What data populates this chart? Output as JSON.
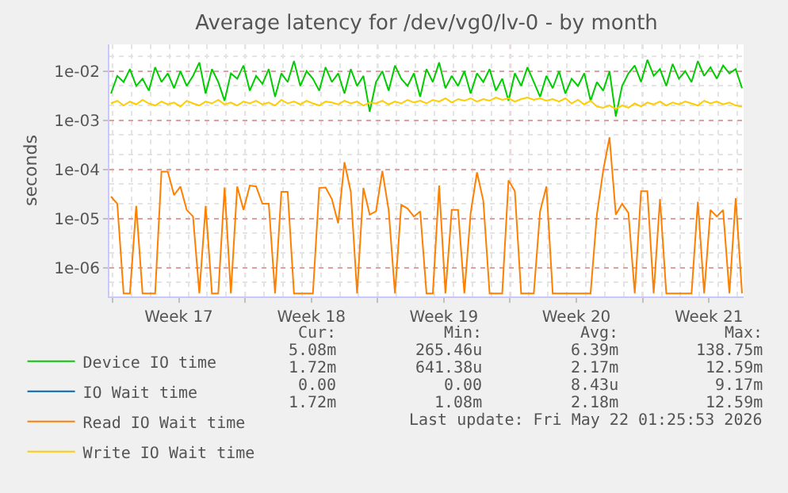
{
  "chart_data": {
    "type": "line",
    "title": "Average latency for /dev/vg0/lv-0 - by month",
    "ylabel": "seconds",
    "log": true,
    "grid": true,
    "legend": "bottom",
    "marker": "none",
    "line_style": "solid",
    "xlim": [
      "2026-04-18T14:00",
      "2026-05-22T02:00"
    ],
    "xticks": [
      {
        "value": "2026-04-18T18:00",
        "label": null
      },
      {
        "value": "2026-04-22T06:00",
        "label": "Week 17"
      },
      {
        "value": "2026-04-25T18:00",
        "label": null
      },
      {
        "value": "2026-04-29T06:00",
        "label": "Week 18"
      },
      {
        "value": "2026-05-02T18:00",
        "label": null
      },
      {
        "value": "2026-05-06T06:00",
        "label": "Week 19"
      },
      {
        "value": "2026-05-09T18:00",
        "label": null
      },
      {
        "value": "2026-05-13T06:00",
        "label": "Week 20"
      },
      {
        "value": "2026-05-16T18:00",
        "label": null
      },
      {
        "value": "2026-05-20T06:00",
        "label": "Week 21"
      }
    ],
    "ylim": [
      2.6e-07,
      0.035
    ],
    "yticks": [
      {
        "value": 1e-06,
        "label": "1e-06"
      },
      {
        "value": 1e-05,
        "label": "1e-05"
      },
      {
        "value": 0.0001,
        "label": "1e-04"
      },
      {
        "value": 0.001,
        "label": "1e-03"
      },
      {
        "value": 0.01,
        "label": "1e-02"
      }
    ],
    "x": [
      "2026-04-18T16:00",
      "2026-04-19T00:00",
      "2026-04-19T08:00",
      "2026-04-19T16:00",
      "2026-04-20T00:00",
      "2026-04-20T08:00",
      "2026-04-20T16:00",
      "2026-04-21T00:00",
      "2026-04-21T08:00",
      "2026-04-21T16:00",
      "2026-04-22T00:00",
      "2026-04-22T08:00",
      "2026-04-22T16:00",
      "2026-04-23T00:00",
      "2026-04-23T08:00",
      "2026-04-23T16:00",
      "2026-04-24T00:00",
      "2026-04-24T08:00",
      "2026-04-24T16:00",
      "2026-04-25T00:00",
      "2026-04-25T08:00",
      "2026-04-25T16:00",
      "2026-04-26T00:00",
      "2026-04-26T08:00",
      "2026-04-26T16:00",
      "2026-04-27T00:00",
      "2026-04-27T08:00",
      "2026-04-27T16:00",
      "2026-04-28T00:00",
      "2026-04-28T08:00",
      "2026-04-28T16:00",
      "2026-04-29T00:00",
      "2026-04-29T08:00",
      "2026-04-29T16:00",
      "2026-04-30T00:00",
      "2026-04-30T08:00",
      "2026-04-30T16:00",
      "2026-05-01T00:00",
      "2026-05-01T08:00",
      "2026-05-01T16:00",
      "2026-05-02T00:00",
      "2026-05-02T08:00",
      "2026-05-02T16:00",
      "2026-05-03T00:00",
      "2026-05-03T08:00",
      "2026-05-03T16:00",
      "2026-05-04T00:00",
      "2026-05-04T08:00",
      "2026-05-04T16:00",
      "2026-05-05T00:00",
      "2026-05-05T08:00",
      "2026-05-05T16:00",
      "2026-05-06T00:00",
      "2026-05-06T08:00",
      "2026-05-06T16:00",
      "2026-05-07T00:00",
      "2026-05-07T08:00",
      "2026-05-07T16:00",
      "2026-05-08T00:00",
      "2026-05-08T08:00",
      "2026-05-08T16:00",
      "2026-05-09T00:00",
      "2026-05-09T08:00",
      "2026-05-09T16:00",
      "2026-05-10T00:00",
      "2026-05-10T08:00",
      "2026-05-10T16:00",
      "2026-05-11T00:00",
      "2026-05-11T08:00",
      "2026-05-11T16:00",
      "2026-05-12T00:00",
      "2026-05-12T08:00",
      "2026-05-12T16:00",
      "2026-05-13T00:00",
      "2026-05-13T08:00",
      "2026-05-13T16:00",
      "2026-05-14T00:00",
      "2026-05-14T08:00",
      "2026-05-14T16:00",
      "2026-05-15T00:00",
      "2026-05-15T08:00",
      "2026-05-15T16:00",
      "2026-05-16T00:00",
      "2026-05-16T08:00",
      "2026-05-16T16:00",
      "2026-05-17T00:00",
      "2026-05-17T08:00",
      "2026-05-17T16:00",
      "2026-05-18T00:00",
      "2026-05-18T08:00",
      "2026-05-18T16:00",
      "2026-05-19T00:00",
      "2026-05-19T08:00",
      "2026-05-19T16:00",
      "2026-05-20T00:00",
      "2026-05-20T08:00",
      "2026-05-20T16:00",
      "2026-05-21T00:00",
      "2026-05-21T08:00",
      "2026-05-21T16:00",
      "2026-05-22T00:00"
    ],
    "series": [
      {
        "name": "Device IO time",
        "color": "#00cc00",
        "values": [
          0.0035,
          0.008,
          0.006,
          0.011,
          0.005,
          0.007,
          0.004,
          0.012,
          0.006,
          0.009,
          0.0045,
          0.01,
          0.005,
          0.008,
          0.015,
          0.0035,
          0.011,
          0.006,
          0.0025,
          0.009,
          0.007,
          0.013,
          0.004,
          0.008,
          0.0055,
          0.011,
          0.003,
          0.009,
          0.006,
          0.016,
          0.005,
          0.01,
          0.007,
          0.004,
          0.012,
          0.006,
          0.009,
          0.0035,
          0.011,
          0.005,
          0.008,
          0.0015,
          0.006,
          0.01,
          0.004,
          0.013,
          0.007,
          0.005,
          0.009,
          0.003,
          0.011,
          0.006,
          0.015,
          0.0045,
          0.008,
          0.005,
          0.01,
          0.0035,
          0.009,
          0.006,
          0.011,
          0.004,
          0.007,
          0.0025,
          0.009,
          0.005,
          0.012,
          0.006,
          0.003,
          0.008,
          0.0045,
          0.01,
          0.0035,
          0.007,
          0.005,
          0.009,
          0.0025,
          0.006,
          0.004,
          0.01,
          0.0012,
          0.005,
          0.009,
          0.013,
          0.006,
          0.017,
          0.008,
          0.011,
          0.005,
          0.014,
          0.007,
          0.01,
          0.006,
          0.016,
          0.008,
          0.012,
          0.007,
          0.013,
          0.009,
          0.011,
          0.0045
        ]
      },
      {
        "name": "IO Wait time",
        "color": "#0066b3",
        "values": [
          null,
          null,
          null,
          null,
          null,
          null,
          null,
          null,
          null,
          null,
          null,
          null,
          null,
          null,
          null,
          null,
          null,
          null,
          null,
          null,
          null,
          null,
          null,
          null,
          null,
          null,
          null,
          null,
          null,
          null,
          null,
          null,
          null,
          null,
          null,
          null,
          null,
          null,
          null,
          null,
          null,
          null,
          null,
          null,
          null,
          null,
          null,
          null,
          null,
          null,
          null,
          null,
          null,
          null,
          null,
          null,
          null,
          null,
          null,
          null,
          null,
          null,
          null,
          null,
          null,
          null,
          null,
          null,
          null,
          null,
          null,
          null,
          null,
          null,
          null,
          null,
          null,
          null,
          null,
          null,
          null,
          null,
          null,
          null,
          null,
          null,
          null,
          null,
          null,
          null,
          null,
          null,
          null,
          null,
          null,
          null,
          null,
          null,
          null,
          null,
          null
        ]
      },
      {
        "name": "Read IO Wait time",
        "color": "#ff8000",
        "values": [
          2.8e-05,
          2e-05,
          3e-07,
          3e-07,
          1.8e-05,
          3e-07,
          3e-07,
          3e-07,
          9e-05,
          9e-05,
          3e-05,
          4.5e-05,
          1.5e-05,
          1.1e-05,
          3e-07,
          1.8e-05,
          3e-07,
          3e-07,
          4.3e-05,
          3e-07,
          4.5e-05,
          1.5e-05,
          4.7e-05,
          4.5e-05,
          2e-05,
          2e-05,
          3e-07,
          3.5e-05,
          3.5e-05,
          3e-07,
          3e-07,
          3e-07,
          3e-07,
          4.2e-05,
          4.3e-05,
          2.5e-05,
          8e-06,
          0.00014,
          3.5e-05,
          3e-07,
          4.2e-05,
          1.2e-05,
          1.4e-05,
          9.3e-05,
          1.5e-05,
          3e-07,
          1.9e-05,
          1.6e-05,
          1.1e-05,
          1.4e-05,
          3e-07,
          3e-07,
          4.7e-05,
          3e-07,
          1.5e-05,
          1.5e-05,
          3e-07,
          1.3e-05,
          8.7e-05,
          2.3e-05,
          3e-07,
          3e-07,
          3e-07,
          6e-05,
          3.6e-05,
          3e-07,
          3e-07,
          3e-07,
          1.4e-05,
          4.5e-05,
          3e-07,
          3e-07,
          3e-07,
          3e-07,
          3e-07,
          3e-07,
          3e-07,
          1.2e-05,
          9.5e-05,
          0.00045,
          1.2e-05,
          2e-05,
          1.3e-05,
          3e-07,
          3.6e-05,
          3.6e-05,
          3e-07,
          2.5e-05,
          3e-07,
          3e-07,
          3e-07,
          3e-07,
          3e-07,
          2.2e-05,
          3e-07,
          1.5e-05,
          1.1e-05,
          1.5e-05,
          3e-07,
          2.6e-05,
          3e-07
        ]
      },
      {
        "name": "Write IO Wait time",
        "color": "#ffcc00",
        "values": [
          0.0022,
          0.0025,
          0.002,
          0.0024,
          0.0021,
          0.0026,
          0.0022,
          0.002,
          0.0024,
          0.0021,
          0.0023,
          0.0019,
          0.0025,
          0.0022,
          0.002,
          0.0024,
          0.0022,
          0.0026,
          0.0021,
          0.0023,
          0.002,
          0.0024,
          0.0022,
          0.0025,
          0.0021,
          0.0023,
          0.002,
          0.0026,
          0.0022,
          0.0024,
          0.0021,
          0.0025,
          0.0022,
          0.002,
          0.0024,
          0.0023,
          0.0021,
          0.0025,
          0.0022,
          0.0024,
          0.002,
          0.0023,
          0.0022,
          0.0025,
          0.0021,
          0.0024,
          0.0022,
          0.0026,
          0.0023,
          0.0025,
          0.0022,
          0.0026,
          0.0024,
          0.0028,
          0.0023,
          0.0027,
          0.0025,
          0.0028,
          0.0024,
          0.0027,
          0.0025,
          0.0029,
          0.0026,
          0.0028,
          0.0024,
          0.0027,
          0.0029,
          0.0026,
          0.0028,
          0.0025,
          0.0027,
          0.0024,
          0.0028,
          0.0022,
          0.0026,
          0.0021,
          0.0025,
          0.0019,
          0.0018,
          0.002,
          0.0017,
          0.002,
          0.0018,
          0.0022,
          0.0019,
          0.0023,
          0.0021,
          0.0024,
          0.002,
          0.0023,
          0.0021,
          0.0024,
          0.0022,
          0.002,
          0.0025,
          0.0022,
          0.0024,
          0.0021,
          0.0023,
          0.002,
          0.0019
        ]
      }
    ],
    "annotations": [
      "Cur:",
      "Min:",
      "Avg:",
      "Max:",
      "5.08m",
      "265.46u",
      "6.39m",
      "138.75m",
      "1.72m",
      "641.38u",
      "2.17m",
      "12.59m",
      "0.00",
      "0.00",
      "8.43u",
      "9.17m",
      "1.72m",
      "1.08m",
      "2.18m",
      "12.59m",
      "Last update: Fri May 22 01:25:53 2026"
    ]
  }
}
